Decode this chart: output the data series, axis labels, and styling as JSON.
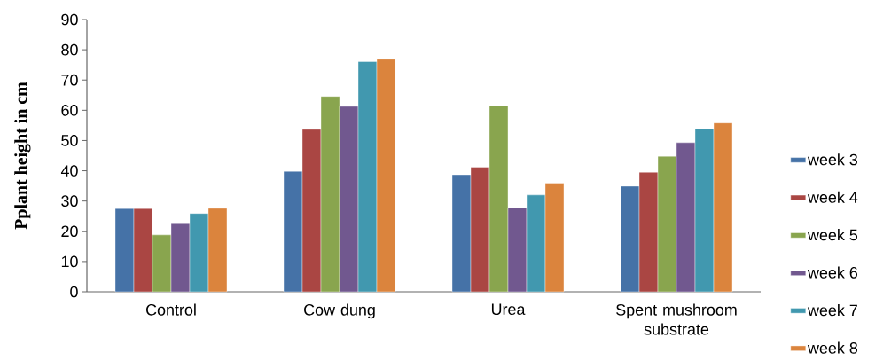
{
  "chart_data": {
    "type": "bar",
    "ylabel": "Pplant height in cm",
    "categories": [
      "Control",
      "Cow dung",
      "Urea",
      "Spent mushroom substrate"
    ],
    "series": [
      {
        "name": "week 3",
        "color": "#4572a7",
        "values": [
          27.5,
          39.8,
          38.7,
          34.9
        ]
      },
      {
        "name": "week 4",
        "color": "#aa4643",
        "values": [
          27.5,
          53.7,
          41.2,
          39.5
        ]
      },
      {
        "name": "week 5",
        "color": "#89a54e",
        "values": [
          18.8,
          64.6,
          61.5,
          44.8
        ]
      },
      {
        "name": "week 6",
        "color": "#71588f",
        "values": [
          22.8,
          61.3,
          27.7,
          49.3
        ]
      },
      {
        "name": "week 7",
        "color": "#4198af",
        "values": [
          25.9,
          76.1,
          32.0,
          53.9
        ]
      },
      {
        "name": "week 8",
        "color": "#db843d",
        "values": [
          27.6,
          76.9,
          35.9,
          55.8
        ]
      }
    ],
    "ylim": [
      0,
      90
    ],
    "yticks": [
      0,
      10,
      20,
      30,
      40,
      50,
      60,
      70,
      80,
      90
    ],
    "grid": false,
    "legend": "right"
  }
}
